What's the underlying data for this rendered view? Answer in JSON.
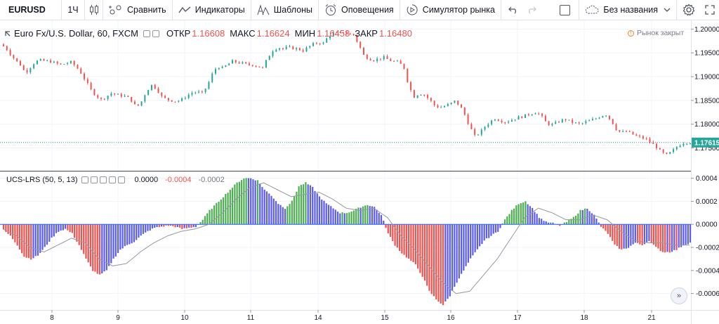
{
  "toolbar": {
    "symbol": "EURUSD",
    "interval": "1Ч",
    "compare_label": "Сравнить",
    "indicators_label": "Индикаторы",
    "templates_label": "Шаблоны",
    "alerts_label": "Оповещения",
    "replay_label": "Симулятор рынка",
    "layout_name": "Без названия"
  },
  "legend": {
    "title": "Euro Fx/U.S. Dollar, 60, FXCM",
    "open_label": "ОТКР",
    "open": "1.16608",
    "high_label": "МАКС",
    "high": "1.16624",
    "low_label": "МИН",
    "low": "1.16458",
    "close_label": "ЗАКР",
    "close": "1.16480",
    "market_status": "Рынок закрыт"
  },
  "indicator": {
    "title": "UCS-LRS (50, 5, 13)",
    "value1": "0.0000",
    "value2": "-0.0004",
    "value3": "-0.0002"
  },
  "price_axis": {
    "ticks": [
      "1.20000",
      "1.19500",
      "1.19000",
      "1.18500",
      "1.18000",
      "1.17500"
    ],
    "last_price": "1.17615"
  },
  "indicator_axis": {
    "ticks": [
      "0.0004",
      "0.0002",
      "0.0000",
      "-0.0002",
      "-0.0004",
      "-0.0006"
    ]
  },
  "time_axis": {
    "ticks": [
      "8",
      "9",
      "10",
      "11",
      "14",
      "15",
      "16",
      "17",
      "18",
      "21"
    ]
  },
  "colors": {
    "up": "#26a69a",
    "down": "#ef5350",
    "hist_red": "#ef5350",
    "hist_green": "#4caf50",
    "hist_blue": "#5b5cf0",
    "signal": "#9598a1",
    "last_price_bg": "#26a69a"
  },
  "chart_data": {
    "type": "candlestick",
    "price_ylim": [
      1.1705,
      1.2008
    ],
    "indicator_ylim": [
      -0.00073,
      0.00044
    ],
    "x_date_labels": [
      "8",
      "9",
      "10",
      "11",
      "14",
      "15",
      "16",
      "17",
      "18",
      "21"
    ],
    "price_path": [
      [
        0,
        1.1968
      ],
      [
        3,
        1.1962
      ],
      [
        6,
        1.1948
      ],
      [
        9,
        1.1935
      ],
      [
        12,
        1.1925
      ],
      [
        15,
        1.1908
      ],
      [
        18,
        1.192
      ],
      [
        21,
        1.1932
      ],
      [
        24,
        1.1934
      ],
      [
        27,
        1.1933
      ],
      [
        30,
        1.1932
      ],
      [
        33,
        1.1928
      ],
      [
        36,
        1.1925
      ],
      [
        39,
        1.1928
      ],
      [
        42,
        1.193
      ],
      [
        45,
        1.1922
      ],
      [
        48,
        1.1908
      ],
      [
        51,
        1.189
      ],
      [
        54,
        1.1872
      ],
      [
        57,
        1.186
      ],
      [
        60,
        1.1852
      ],
      [
        63,
        1.1858
      ],
      [
        66,
        1.1865
      ],
      [
        69,
        1.1862
      ],
      [
        72,
        1.186
      ],
      [
        75,
        1.1858
      ],
      [
        78,
        1.185
      ],
      [
        81,
        1.1835
      ],
      [
        84,
        1.1848
      ],
      [
        87,
        1.187
      ],
      [
        90,
        1.1882
      ],
      [
        93,
        1.1875
      ],
      [
        96,
        1.1858
      ],
      [
        99,
        1.1852
      ],
      [
        102,
        1.185
      ],
      [
        105,
        1.1848
      ],
      [
        108,
        1.1852
      ],
      [
        111,
        1.186
      ],
      [
        114,
        1.1866
      ],
      [
        117,
        1.1868
      ],
      [
        120,
        1.1865
      ],
      [
        123,
        1.188
      ],
      [
        126,
        1.1905
      ],
      [
        129,
        1.1922
      ],
      [
        132,
        1.1918
      ],
      [
        135,
        1.1925
      ],
      [
        138,
        1.1932
      ],
      [
        141,
        1.193
      ],
      [
        144,
        1.1928
      ],
      [
        147,
        1.1925
      ],
      [
        150,
        1.1925
      ],
      [
        153,
        1.1922
      ],
      [
        156,
        1.1918
      ],
      [
        159,
        1.194
      ],
      [
        162,
        1.1955
      ],
      [
        165,
        1.1962
      ],
      [
        168,
        1.1958
      ],
      [
        171,
        1.1962
      ],
      [
        174,
        1.196
      ],
      [
        177,
        1.1958
      ],
      [
        180,
        1.1955
      ],
      [
        183,
        1.1962
      ],
      [
        186,
        1.1968
      ],
      [
        189,
        1.1972
      ],
      [
        192,
        1.197
      ],
      [
        195,
        1.1985
      ],
      [
        198,
        1.1992
      ],
      [
        201,
        1.199
      ],
      [
        204,
        1.1994
      ],
      [
        207,
        1.199
      ],
      [
        210,
        1.1988
      ],
      [
        213,
        1.1968
      ],
      [
        216,
        1.1945
      ],
      [
        219,
        1.1938
      ],
      [
        222,
        1.1935
      ],
      [
        225,
        1.1938
      ],
      [
        228,
        1.194
      ],
      [
        231,
        1.1935
      ],
      [
        234,
        1.1932
      ],
      [
        237,
        1.193
      ],
      [
        240,
        1.1918
      ],
      [
        243,
        1.1878
      ],
      [
        246,
        1.1858
      ],
      [
        249,
        1.1865
      ],
      [
        252,
        1.1862
      ],
      [
        255,
        1.1852
      ],
      [
        258,
        1.184
      ],
      [
        261,
        1.1835
      ],
      [
        264,
        1.1838
      ],
      [
        267,
        1.1842
      ],
      [
        270,
        1.1848
      ],
      [
        273,
        1.184
      ],
      [
        276,
        1.182
      ],
      [
        279,
        1.1795
      ],
      [
        282,
        1.1775
      ],
      [
        285,
        1.1782
      ],
      [
        288,
        1.1795
      ],
      [
        291,
        1.1805
      ],
      [
        294,
        1.1812
      ],
      [
        297,
        1.1808
      ],
      [
        300,
        1.1805
      ],
      [
        303,
        1.1808
      ],
      [
        306,
        1.1812
      ],
      [
        309,
        1.1815
      ],
      [
        312,
        1.1818
      ],
      [
        315,
        1.1822
      ],
      [
        318,
        1.1825
      ],
      [
        321,
        1.182
      ],
      [
        324,
        1.1805
      ],
      [
        327,
        1.1798
      ],
      [
        330,
        1.1802
      ],
      [
        333,
        1.1808
      ],
      [
        336,
        1.181
      ],
      [
        339,
        1.1805
      ],
      [
        342,
        1.1802
      ],
      [
        345,
        1.18
      ],
      [
        348,
        1.1805
      ],
      [
        351,
        1.1808
      ],
      [
        354,
        1.1812
      ],
      [
        357,
        1.1818
      ],
      [
        360,
        1.182
      ],
      [
        363,
        1.1808
      ],
      [
        366,
        1.179
      ],
      [
        369,
        1.1782
      ],
      [
        372,
        1.1785
      ],
      [
        375,
        1.178
      ],
      [
        378,
        1.1775
      ],
      [
        381,
        1.1772
      ],
      [
        384,
        1.1768
      ],
      [
        387,
        1.176
      ],
      [
        390,
        1.1752
      ],
      [
        393,
        1.174
      ],
      [
        396,
        1.1735
      ],
      [
        399,
        1.1742
      ],
      [
        402,
        1.1752
      ],
      [
        405,
        1.176
      ],
      [
        408,
        1.1762
      ]
    ],
    "histogram_path": [
      [
        0,
        -5e-05
      ],
      [
        3,
        -0.0001
      ],
      [
        6,
        -0.00018
      ],
      [
        9,
        -0.00028
      ],
      [
        12,
        -0.0003
      ],
      [
        15,
        -0.00027
      ],
      [
        18,
        -0.0002
      ],
      [
        21,
        -0.00012
      ],
      [
        24,
        -6e-05
      ],
      [
        27,
        -4e-05
      ],
      [
        30,
        -8e-05
      ],
      [
        33,
        -0.00018
      ],
      [
        36,
        -0.0003
      ],
      [
        39,
        -0.0004
      ],
      [
        42,
        -0.00044
      ],
      [
        45,
        -0.0004
      ],
      [
        48,
        -0.0003
      ],
      [
        51,
        -0.00022
      ],
      [
        54,
        -0.00018
      ],
      [
        57,
        -0.00015
      ],
      [
        60,
        -0.0001
      ],
      [
        63,
        -6e-05
      ],
      [
        66,
        -3e-05
      ],
      [
        69,
        -2e-05
      ],
      [
        72,
        -1e-05
      ],
      [
        75,
        -2e-05
      ],
      [
        78,
        -4e-05
      ],
      [
        81,
        -3e-05
      ],
      [
        84,
        -2e-05
      ],
      [
        87,
        4e-05
      ],
      [
        90,
        0.00012
      ],
      [
        93,
        0.00018
      ],
      [
        96,
        0.00024
      ],
      [
        99,
        0.0003
      ],
      [
        102,
        0.00036
      ],
      [
        105,
        0.0004
      ],
      [
        108,
        0.0004
      ],
      [
        111,
        0.00038
      ],
      [
        114,
        0.0003
      ],
      [
        117,
        0.00025
      ],
      [
        120,
        0.00018
      ],
      [
        123,
        0.00014
      ],
      [
        126,
        0.0002
      ],
      [
        129,
        0.00033
      ],
      [
        132,
        0.00036
      ],
      [
        135,
        0.00032
      ],
      [
        138,
        0.00024
      ],
      [
        141,
        0.00018
      ],
      [
        144,
        0.00014
      ],
      [
        147,
        0.0001
      ],
      [
        150,
        0.0001
      ],
      [
        153,
        0.00012
      ],
      [
        156,
        0.00015
      ],
      [
        159,
        0.00017
      ],
      [
        162,
        0.00015
      ],
      [
        165,
        8e-05
      ],
      [
        168,
        -8e-05
      ],
      [
        171,
        -0.00018
      ],
      [
        174,
        -0.00025
      ],
      [
        177,
        -0.0003
      ],
      [
        180,
        -0.00035
      ],
      [
        183,
        -0.00045
      ],
      [
        186,
        -0.00058
      ],
      [
        189,
        -0.00065
      ],
      [
        192,
        -0.0007
      ],
      [
        195,
        -0.00062
      ],
      [
        198,
        -0.0005
      ],
      [
        201,
        -0.0004
      ],
      [
        204,
        -0.0003
      ],
      [
        207,
        -0.00022
      ],
      [
        210,
        -0.00014
      ],
      [
        213,
        -0.0001
      ],
      [
        216,
        -6e-05
      ],
      [
        219,
        4e-05
      ],
      [
        222,
        0.00012
      ],
      [
        225,
        0.00018
      ],
      [
        228,
        0.0002
      ],
      [
        231,
        0.00014
      ],
      [
        234,
        6e-05
      ],
      [
        237,
        2e-05
      ],
      [
        240,
        1e-05
      ],
      [
        243,
        -1e-05
      ],
      [
        246,
        2e-05
      ],
      [
        249,
        6e-05
      ],
      [
        252,
        0.00012
      ],
      [
        255,
        0.00014
      ],
      [
        258,
        8e-05
      ],
      [
        261,
        -2e-05
      ],
      [
        264,
        -8e-05
      ],
      [
        267,
        -0.00018
      ],
      [
        270,
        -0.00022
      ],
      [
        273,
        -0.0002
      ],
      [
        276,
        -0.00016
      ],
      [
        279,
        -0.00018
      ],
      [
        282,
        -0.00014
      ],
      [
        285,
        -0.0002
      ],
      [
        288,
        -0.00024
      ],
      [
        291,
        -0.00024
      ],
      [
        294,
        -0.00022
      ],
      [
        297,
        -0.00018
      ],
      [
        300,
        -0.00016
      ]
    ],
    "signal_path": [
      [
        0,
        -4e-05
      ],
      [
        6,
        -0.0001
      ],
      [
        12,
        -0.0002
      ],
      [
        18,
        -0.00024
      ],
      [
        24,
        -0.00018
      ],
      [
        30,
        -0.00012
      ],
      [
        36,
        -0.00016
      ],
      [
        42,
        -0.0003
      ],
      [
        48,
        -0.00036
      ],
      [
        54,
        -0.00034
      ],
      [
        60,
        -0.00024
      ],
      [
        66,
        -0.00016
      ],
      [
        72,
        -0.0001
      ],
      [
        78,
        -6e-05
      ],
      [
        84,
        -4e-05
      ],
      [
        90,
        0.0
      ],
      [
        96,
        0.0001
      ],
      [
        102,
        0.00022
      ],
      [
        108,
        0.00032
      ],
      [
        114,
        0.00036
      ],
      [
        120,
        0.0003
      ],
      [
        126,
        0.00024
      ],
      [
        132,
        0.00026
      ],
      [
        138,
        0.00028
      ],
      [
        144,
        0.00022
      ],
      [
        150,
        0.00014
      ],
      [
        156,
        0.00012
      ],
      [
        162,
        0.00014
      ],
      [
        168,
        6e-05
      ],
      [
        174,
        -0.0001
      ],
      [
        180,
        -0.00022
      ],
      [
        186,
        -0.00036
      ],
      [
        192,
        -0.0005
      ],
      [
        198,
        -0.0006
      ],
      [
        204,
        -0.00058
      ],
      [
        210,
        -0.00044
      ],
      [
        216,
        -0.0003
      ],
      [
        222,
        -0.00012
      ],
      [
        228,
        6e-05
      ],
      [
        234,
        0.00014
      ],
      [
        240,
        0.0001
      ],
      [
        246,
        4e-05
      ],
      [
        252,
        4e-05
      ],
      [
        258,
        8e-05
      ],
      [
        264,
        4e-05
      ],
      [
        270,
        -6e-05
      ],
      [
        276,
        -0.00014
      ],
      [
        282,
        -0.00016
      ],
      [
        288,
        -0.00016
      ],
      [
        294,
        -0.00018
      ],
      [
        300,
        -0.00018
      ]
    ]
  }
}
